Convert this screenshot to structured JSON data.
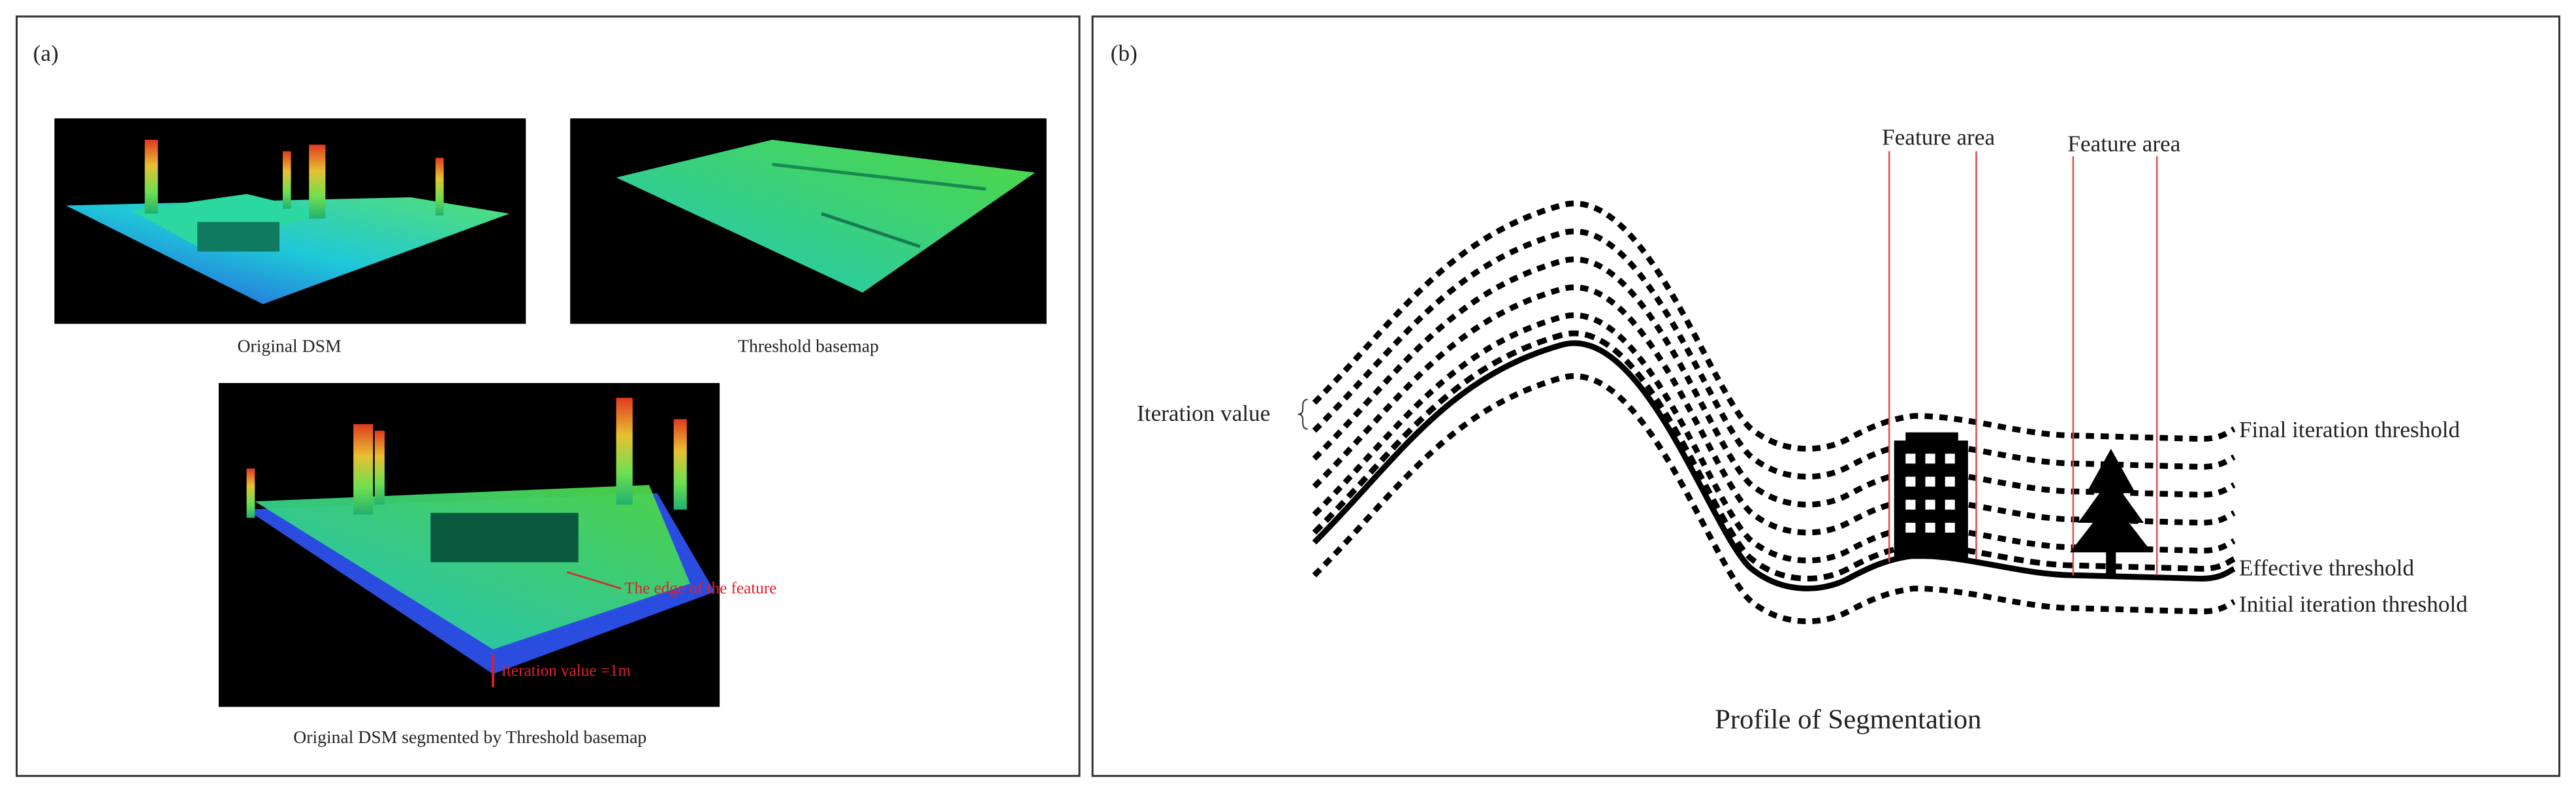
{
  "panel_a": {
    "label": "(a)",
    "original_dsm": "Original DSM",
    "threshold_basemap": "Threshold basemap",
    "edge_annotation": "The edge of the feature",
    "iteration_annotation": "Iteration value =1m",
    "segmented_caption": "Original DSM segmented by Threshold basemap"
  },
  "panel_b": {
    "label": "(b)",
    "feature_area_1": "Feature area",
    "feature_area_2": "Feature area",
    "iteration_value": "Iteration value",
    "final_threshold": "Final iteration threshold",
    "effective_threshold": "Effective threshold",
    "initial_threshold": "Initial iteration threshold",
    "caption": "Profile of Segmentation"
  }
}
